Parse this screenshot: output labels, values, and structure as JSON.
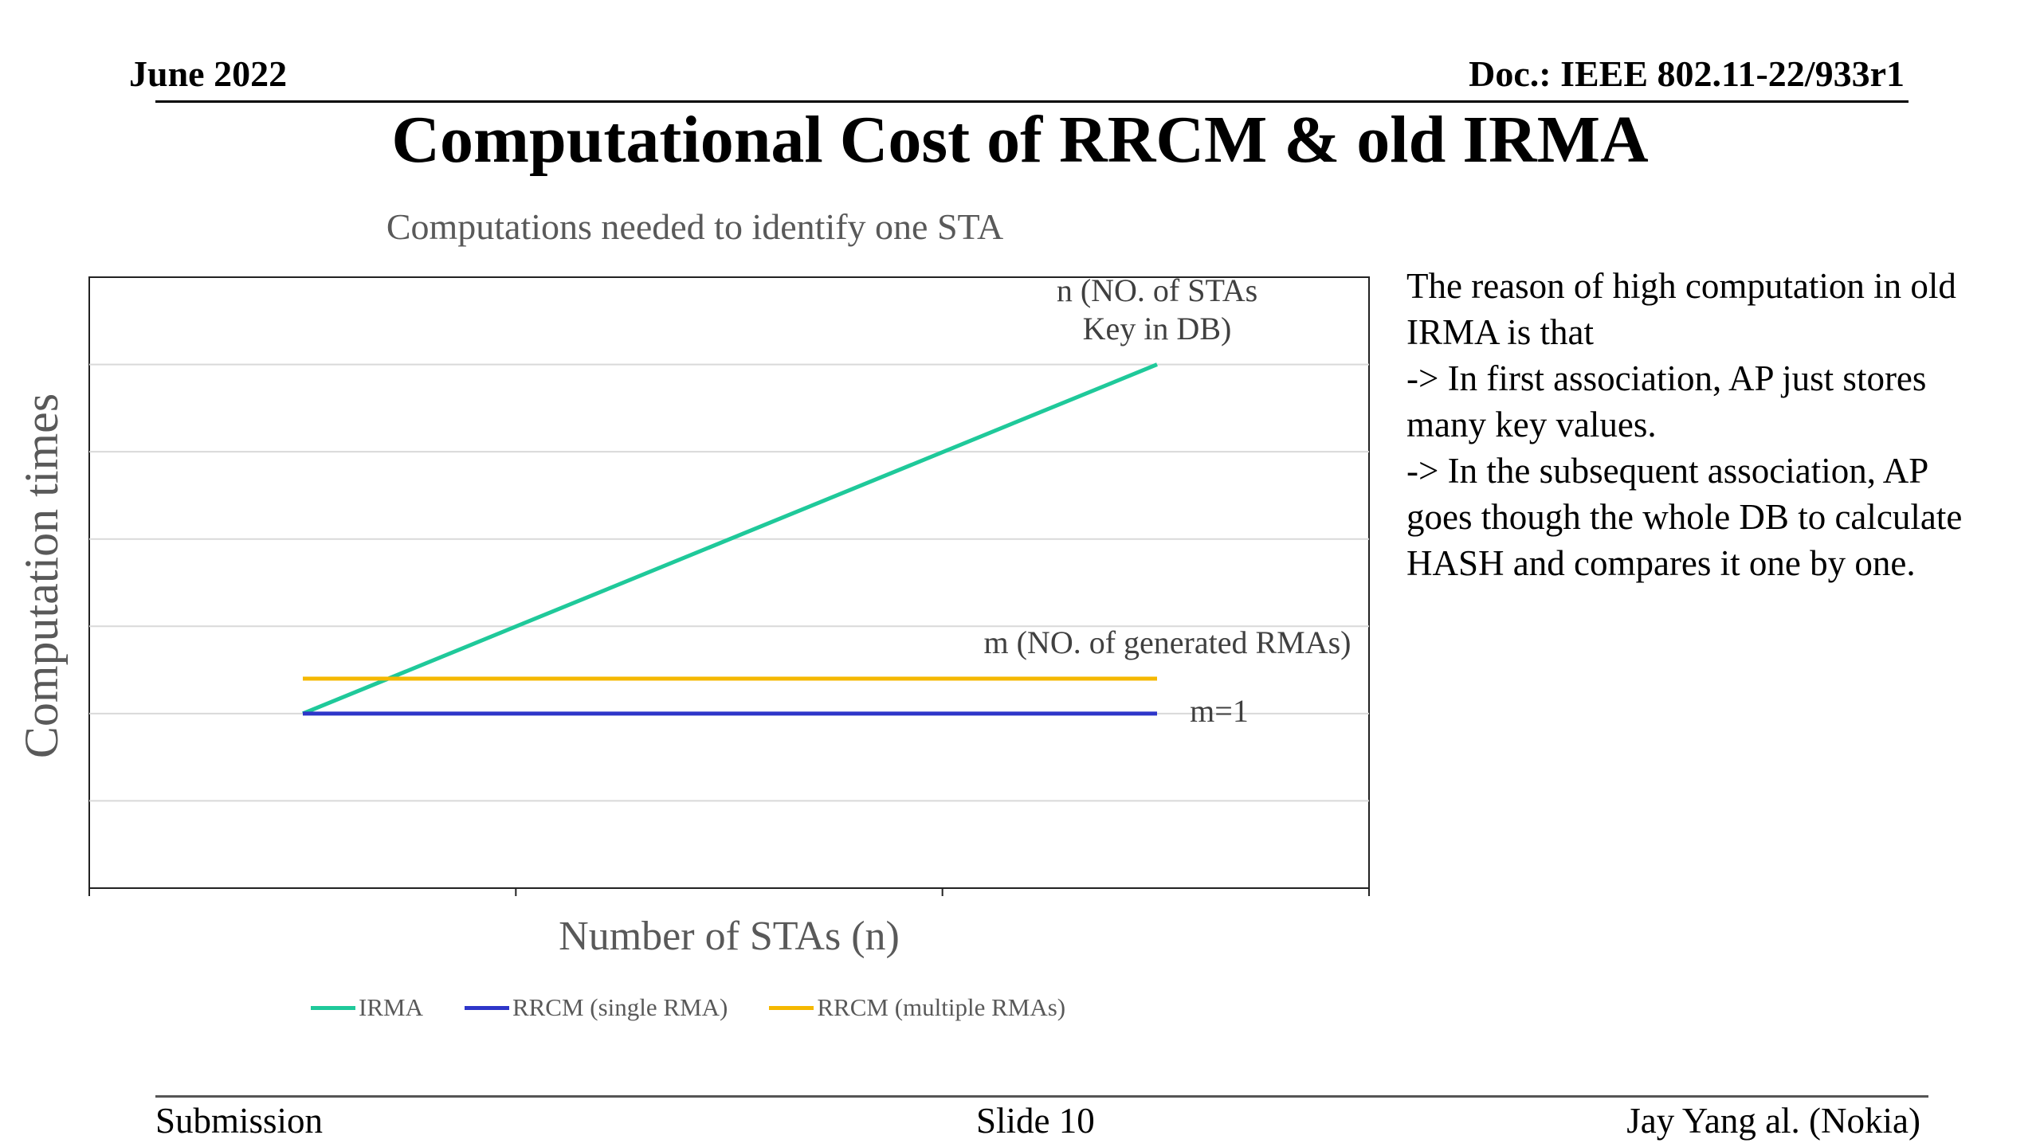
{
  "header": {
    "date": "June 2022",
    "doc": "Doc.: IEEE 802.11-22/933r1"
  },
  "slide_title": "Computational Cost of RRCM & old IRMA",
  "side_text": [
    "The reason of high computation in old",
    "IRMA is that",
    "-> In first association, AP just stores",
    "many key values.",
    "-> In the subsequent association, AP",
    "goes though the whole DB to calculate",
    "HASH and compares it one by one."
  ],
  "footer": {
    "left": "Submission",
    "center": "Slide 10",
    "right": "Jay Yang al. (Nokia)"
  },
  "chart_data": {
    "type": "line",
    "title": "Computations needed to identify one STA",
    "xlabel": "Number of STAs (n)",
    "ylabel": "Computation times",
    "x": [
      0,
      1
    ],
    "ylim": [
      0,
      7
    ],
    "grid": true,
    "legend_position": "bottom",
    "series": [
      {
        "name": "IRMA",
        "values": [
          2,
          6
        ],
        "color": "#1FC99A"
      },
      {
        "name": "RRCM (single RMA)",
        "values": [
          2,
          2
        ],
        "color": "#2E36C9"
      },
      {
        "name": "RRCM (multiple RMAs)",
        "values": [
          2.4,
          2.4
        ],
        "color": "#F5B800"
      }
    ],
    "annotations": [
      {
        "lines": [
          "n (NO. of STAs",
          "Key in DB)"
        ],
        "x": 1,
        "y": 6
      },
      {
        "lines": [
          "m (NO. of generated RMAs)"
        ],
        "x": 1,
        "y": 2.4
      },
      {
        "lines": [
          "m=1"
        ],
        "x": 1,
        "y": 2
      }
    ]
  }
}
